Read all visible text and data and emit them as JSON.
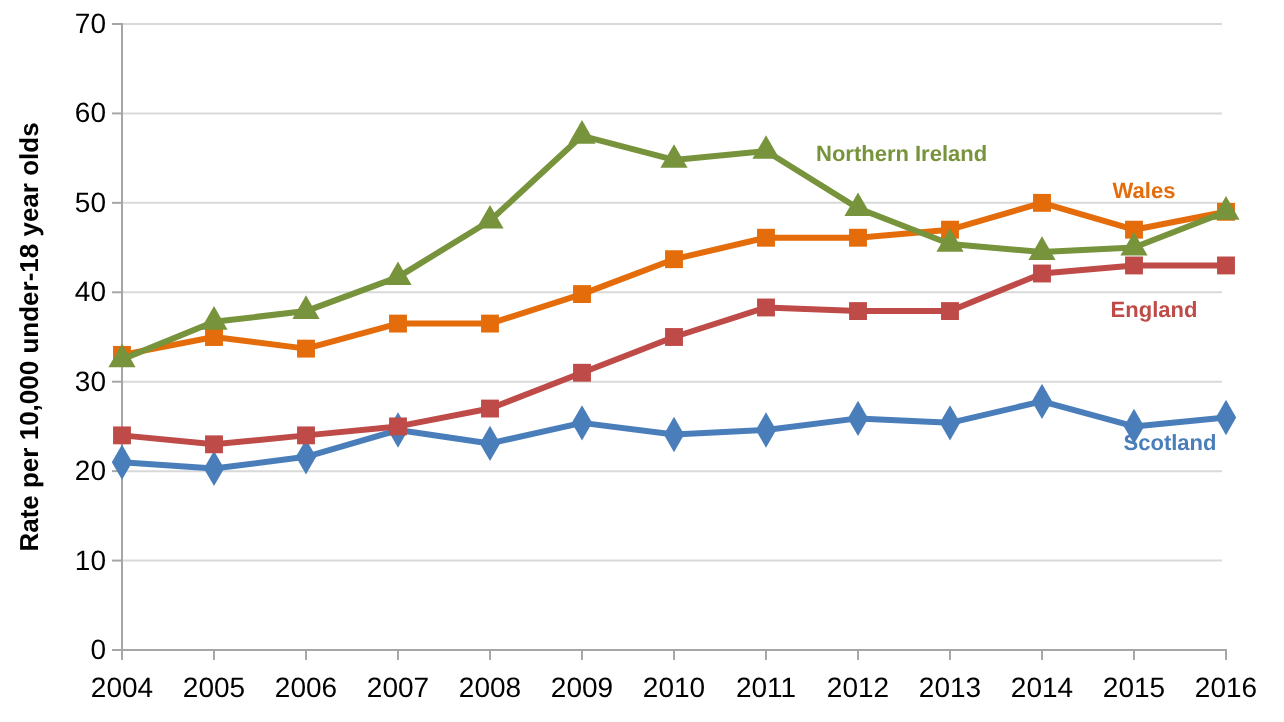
{
  "chart_data": {
    "type": "line",
    "ylabel": "Rate per 10,000 under-18 year olds",
    "x": [
      2004,
      2005,
      2006,
      2007,
      2008,
      2009,
      2010,
      2011,
      2012,
      2013,
      2014,
      2015,
      2016
    ],
    "xlim": [
      2004,
      2016
    ],
    "xticks": [
      2004,
      2005,
      2006,
      2007,
      2008,
      2009,
      2010,
      2011,
      2012,
      2013,
      2014,
      2015,
      2016
    ],
    "ylim": [
      0,
      70
    ],
    "yticks": [
      0,
      10,
      20,
      30,
      40,
      50,
      60,
      70
    ],
    "grid": "y",
    "legend": false,
    "line_style": "solid",
    "series": [
      {
        "name": "Scotland",
        "color": "#4a7ebb",
        "marker": "diamond",
        "values": [
          21,
          20.3,
          21.6,
          24.6,
          23.1,
          25.4,
          24.1,
          24.6,
          25.9,
          25.4,
          27.8,
          25,
          26
        ]
      },
      {
        "name": "England",
        "color": "#be4b48",
        "marker": "square",
        "values": [
          24,
          23,
          24,
          25,
          27,
          31,
          35,
          38.3,
          37.9,
          37.9,
          42.1,
          43,
          43
        ]
      },
      {
        "name": "Wales",
        "color": "#e46c0a",
        "marker": "square",
        "values": [
          33,
          35,
          33.7,
          36.5,
          36.5,
          39.8,
          43.7,
          46.1,
          46.1,
          47,
          50,
          47,
          49
        ]
      },
      {
        "name": "Northern Ireland",
        "color": "#77933c",
        "marker": "triangle",
        "values": [
          32.5,
          36.7,
          37.9,
          41.7,
          48,
          57.5,
          54.8,
          55.8,
          49.4,
          45.4,
          44.5,
          45,
          49
        ]
      }
    ]
  }
}
